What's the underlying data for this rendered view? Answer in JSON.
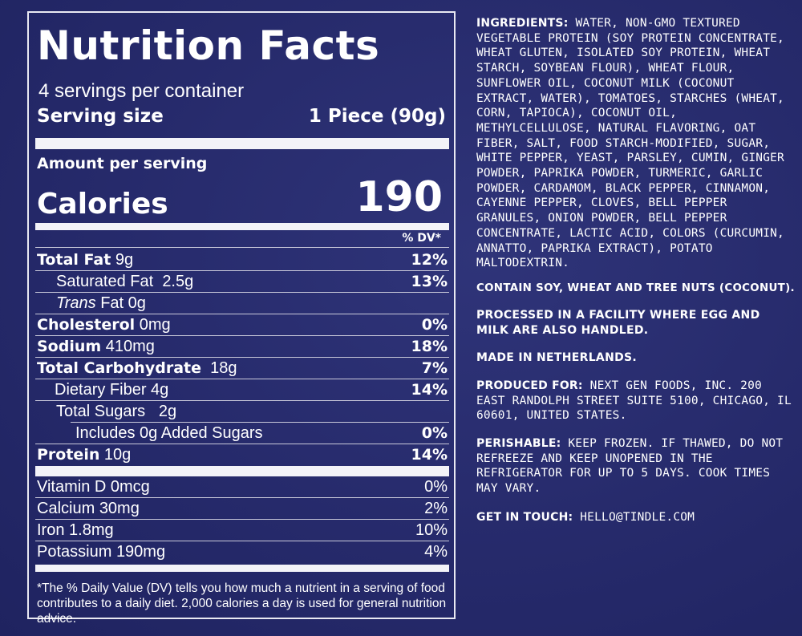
{
  "nutrition": {
    "title": "Nutrition Facts",
    "servings_per_container": "4 servings per container",
    "serving_size_label": "Serving size",
    "serving_size_value": "1 Piece (90g)",
    "amount_per_serving": "Amount per serving",
    "calories_label": "Calories",
    "calories_value": "190",
    "dv_header": "% DV*",
    "rows": [
      {
        "name": "Total Fat",
        "amount": "9g",
        "dv": "12%"
      },
      {
        "name": "Saturated Fat",
        "amount": "2.5g",
        "dv": "13%"
      },
      {
        "name": "Trans",
        "name_rest": "Fat",
        "amount": "0g",
        "dv": ""
      },
      {
        "name": "Cholesterol",
        "amount": "0mg",
        "dv": "0%"
      },
      {
        "name": "Sodium",
        "amount": "410mg",
        "dv": "18%"
      },
      {
        "name": "Total Carbohydrate",
        "amount": "18g",
        "dv": "7%"
      },
      {
        "name": "Dietary Fiber",
        "amount": "4g",
        "dv": "14%"
      },
      {
        "name": "Total Sugars",
        "amount": "2g",
        "dv": ""
      },
      {
        "name": "Includes 0g Added Sugars",
        "amount": "",
        "dv": "0%"
      },
      {
        "name": "Protein",
        "amount": "10g",
        "dv": "14%"
      }
    ],
    "vitamins": [
      {
        "name": "Vitamin D",
        "amount": "0mcg",
        "dv": "0%"
      },
      {
        "name": "Calcium",
        "amount": "30mg",
        "dv": "2%"
      },
      {
        "name": "Iron",
        "amount": "1.8mg",
        "dv": "10%"
      },
      {
        "name": "Potassium",
        "amount": "190mg",
        "dv": "4%"
      }
    ],
    "footnote": "*The % Daily Value (DV) tells you how much a nutrient in a serving of food contributes to a daily diet. 2,000 calories a day is used for general nutrition advice."
  },
  "label": {
    "ingredients_label": "INGREDIENTS:",
    "ingredients_text": "WATER, NON-GMO TEXTURED VEGETABLE PROTEIN (SOY PROTEIN CONCENTRATE, WHEAT GLUTEN, ISOLATED SOY PROTEIN, WHEAT STARCH, SOYBEAN FLOUR), WHEAT FLOUR, SUNFLOWER OIL, COCONUT MILK (COCONUT EXTRACT, WATER), TOMATOES, STARCHES (WHEAT, CORN, TAPIOCA), COCONUT OIL, METHYLCELLULOSE, NATURAL FLAVORING, OAT FIBER, SALT, FOOD STARCH-MODIFIED, SUGAR, WHITE PEPPER, YEAST, PARSLEY, CUMIN, GINGER POWDER, PAPRIKA POWDER, TURMERIC, GARLIC POWDER, CARDAMOM, BLACK PEPPER, CINNAMON, CAYENNE PEPPER, CLOVES, BELL PEPPER GRANULES, ONION POWDER, BELL PEPPER CONCENTRATE, LACTIC ACID, COLORS (CURCUMIN, ANNATTO, PAPRIKA EXTRACT), POTATO MALTODEXTRIN.",
    "allergen": "CONTAIN SOY, WHEAT AND TREE NUTS (COCONUT).",
    "facility": "PROCESSED IN A FACILITY WHERE EGG AND MILK ARE ALSO HANDLED.",
    "made_in": "MADE IN NETHERLANDS.",
    "produced_label": "PRODUCED FOR:",
    "produced_text": "NEXT GEN FOODS, INC. 200 EAST RANDOLPH STREET SUITE 5100, CHICAGO, IL 60601, UNITED STATES.",
    "perishable_label": "PERISHABLE:",
    "perishable_text": "KEEP FROZEN. IF THAWED, DO NOT REFREEZE AND KEEP UNOPENED IN THE REFRIGERATOR FOR UP TO 5 DAYS. COOK TIMES MAY VARY.",
    "contact_label": "GET IN TOUCH:",
    "contact_text": "HELLO@TINDLE.COM"
  }
}
